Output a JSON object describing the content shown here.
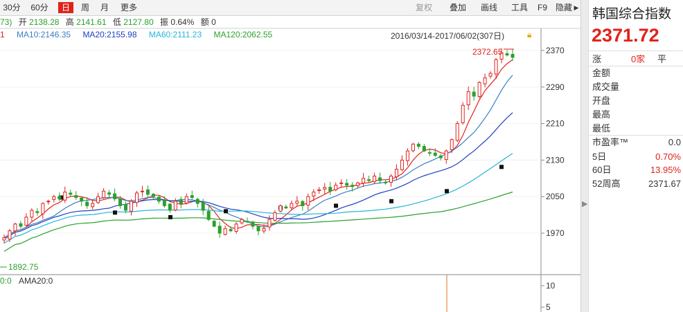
{
  "toolbar": {
    "left": [
      {
        "id": "30min",
        "label": "30分"
      },
      {
        "id": "60min",
        "label": "60分"
      },
      {
        "id": "day",
        "label": "日",
        "active": true
      },
      {
        "id": "week",
        "label": "周"
      },
      {
        "id": "month",
        "label": "月"
      },
      {
        "id": "more",
        "label": "更多"
      }
    ],
    "right": [
      {
        "id": "restore",
        "label": "复权",
        "disabled": true
      },
      {
        "id": "overlay",
        "label": "叠加"
      },
      {
        "id": "draw",
        "label": "画线"
      },
      {
        "id": "tools",
        "label": "工具"
      },
      {
        "id": "f9",
        "label": "F9"
      },
      {
        "id": "hide",
        "label": "隐藏"
      }
    ]
  },
  "quote": {
    "prefix": "73)",
    "open_label": "开",
    "open": "2138.28",
    "high_label": "高",
    "high": "2141.61",
    "low_label": "低",
    "low": "2127.80",
    "amp_label": "振",
    "amp": "0.64%",
    "amount_label": "额",
    "amount": "0"
  },
  "ma": {
    "prefix": "1",
    "ma10": "MA10:2146.35",
    "ma20": "MA20:2155.98",
    "ma60": "MA60:2111.23",
    "ma120": "MA120:2062.55"
  },
  "range_text": "2016/03/14-2017/06/02(307日)",
  "chart_data": {
    "type": "candlestick",
    "price_axis": {
      "ticks": [
        2370,
        2290,
        2210,
        2130,
        2050,
        1970
      ]
    },
    "high_label": "2372.65",
    "low_label": "1892.75",
    "volume_axis": {
      "ticks": [
        10,
        5
      ]
    },
    "volume_labels": {
      "a": "0:0",
      "b": "AMA20:0"
    },
    "candles_approx": [
      1960,
      1975,
      1990,
      1985,
      2005,
      2020,
      2015,
      2035,
      2040,
      2050,
      2045,
      2060,
      2055,
      2048,
      2040,
      2030,
      2035,
      2050,
      2062,
      2055,
      2045,
      2030,
      2020,
      2040,
      2058,
      2062,
      2055,
      2050,
      2040,
      2030,
      2020,
      2040,
      2035,
      2050,
      2048,
      2035,
      2020,
      2000,
      1985,
      1970,
      1980,
      1975,
      1990,
      2000,
      1995,
      1985,
      1975,
      1980,
      2000,
      2015,
      2030,
      2025,
      2035,
      2040,
      2030,
      2050,
      2060,
      2065,
      2070,
      2062,
      2075,
      2080,
      2075,
      2072,
      2080,
      2090,
      2085,
      2095,
      2085,
      2080,
      2095,
      2110,
      2130,
      2150,
      2165,
      2160,
      2150,
      2145,
      2140,
      2135,
      2150,
      2175,
      2210,
      2250,
      2280,
      2270,
      2300,
      2310,
      2320,
      2350,
      2365,
      2360,
      2355
    ],
    "colors": {
      "ma10": "#3a7fc1",
      "ma20": "#1f3fbf",
      "ma60": "#28b4d8",
      "ma120": "#2ca02c",
      "up": "#e0221c",
      "down": "#2ca02c"
    }
  },
  "panel": {
    "name": "韩国综合指数",
    "price": "2371.72",
    "rows": [
      {
        "label": "涨",
        "value": "0家",
        "extra": "平"
      },
      {
        "label": "金额",
        "value": ""
      },
      {
        "label": "成交量",
        "value": ""
      },
      {
        "label": "开盘",
        "value": ""
      },
      {
        "label": "最高",
        "value": ""
      },
      {
        "label": "最低",
        "value": ""
      }
    ],
    "stats": [
      {
        "label": "市盈率™",
        "value": "0.0",
        "color": "#333"
      },
      {
        "label": "5日",
        "value": "0.70%",
        "color": "#e0221c"
      },
      {
        "label": "60日",
        "value": "13.95%",
        "color": "#e0221c"
      },
      {
        "label": "52周高",
        "value": "2371.67",
        "color": "#333"
      }
    ]
  }
}
